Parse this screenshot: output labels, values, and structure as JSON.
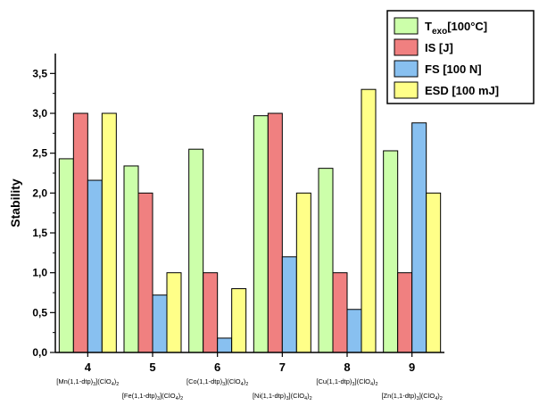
{
  "chart_data": {
    "type": "bar",
    "xlabel": "",
    "ylabel": "Stability",
    "ylim": [
      0,
      3.75
    ],
    "y_ticks": [
      "0,0",
      "0,5",
      "1,0",
      "1,5",
      "2,0",
      "2,5",
      "3,0",
      "3,5"
    ],
    "grid": false,
    "legend_position": "top-right",
    "categories": [
      "4",
      "5",
      "6",
      "7",
      "8",
      "9"
    ],
    "compound_labels": [
      {
        "main": "[Mn(1,1-dtp)",
        "sub1": "3",
        "mid": "](ClO",
        "sub2": "4",
        "end": ")",
        "sub3": "2"
      },
      {
        "main": "[Fe(1,1-dtp)",
        "sub1": "3",
        "mid": "](ClO",
        "sub2": "4",
        "end": ")",
        "sub3": "2"
      },
      {
        "main": "[Co(1,1-dtp)",
        "sub1": "3",
        "mid": "](ClO",
        "sub2": "4",
        "end": ")",
        "sub3": "2"
      },
      {
        "main": "[Ni(1,1-dtp)",
        "sub1": "3",
        "mid": "](ClO",
        "sub2": "4",
        "end": ")",
        "sub3": "2"
      },
      {
        "main": "[Cu(1,1-dtp)",
        "sub1": "3",
        "mid": "](ClO",
        "sub2": "4",
        "end": ")",
        "sub3": "2"
      },
      {
        "main": "[Zn(1,1-dtp)",
        "sub1": "3",
        "mid": "](ClO",
        "sub2": "4",
        "end": ")",
        "sub3": "2"
      }
    ],
    "series": [
      {
        "name": "T",
        "name_sub": "exo",
        "name_rest": "[100°C]",
        "color": "#ccffaa",
        "values": [
          2.43,
          2.34,
          2.55,
          2.97,
          2.31,
          2.53
        ]
      },
      {
        "name": "IS [J]",
        "color": "#f08080",
        "values": [
          3.0,
          2.0,
          1.0,
          3.0,
          1.0,
          1.0
        ]
      },
      {
        "name": "FS [100 N]",
        "color": "#88c0f0",
        "values": [
          2.16,
          0.72,
          0.18,
          1.2,
          0.54,
          2.88
        ]
      },
      {
        "name": "ESD [100 mJ]",
        "color": "#ffff88",
        "values": [
          3.0,
          1.0,
          0.8,
          2.0,
          3.3,
          2.0
        ]
      }
    ]
  }
}
